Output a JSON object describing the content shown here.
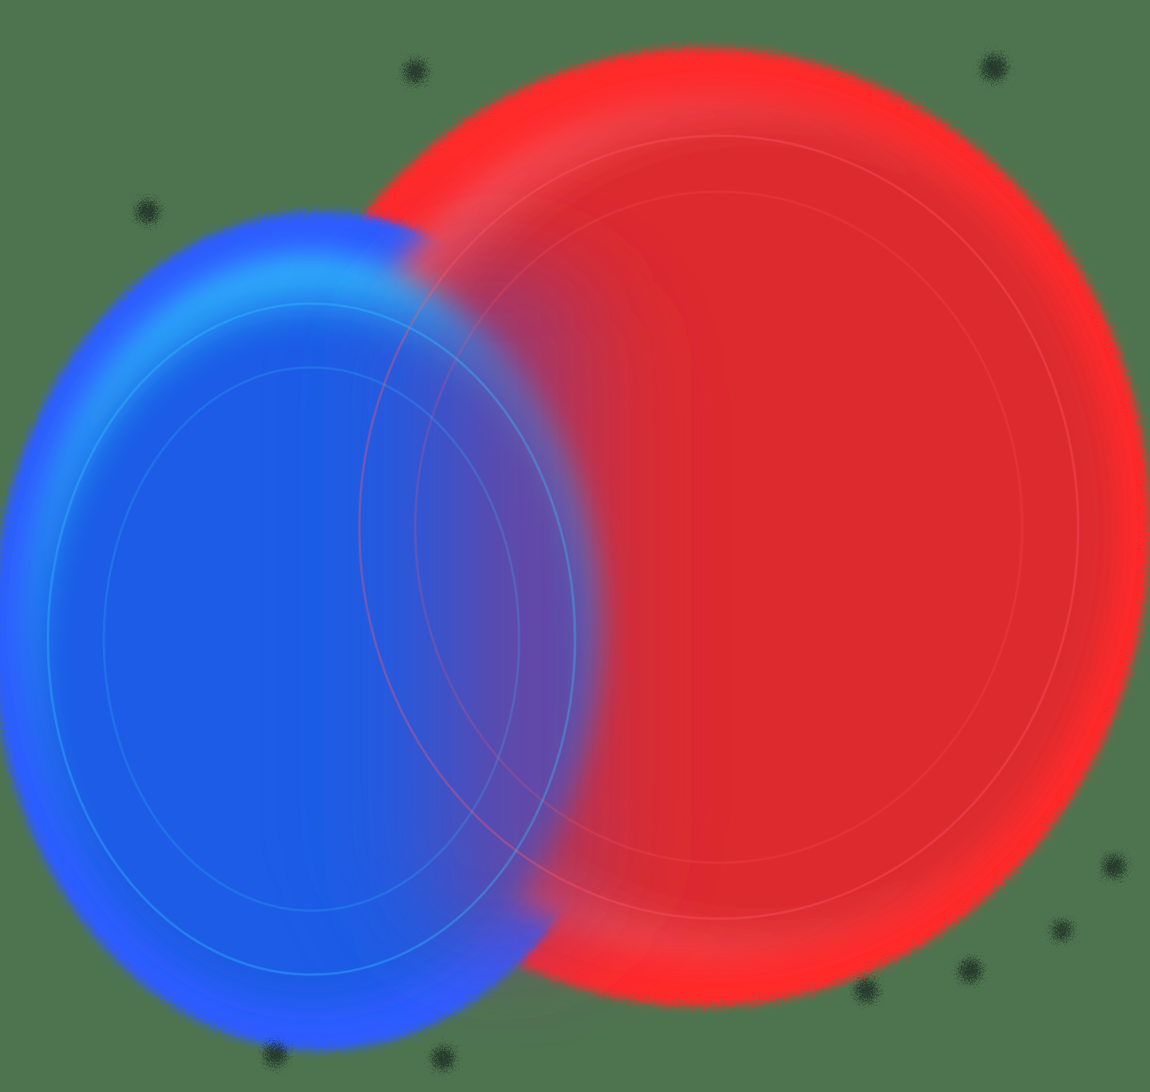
{
  "scene": {
    "background_color": "#4E744F",
    "blue_blob_color": "#1A5CE6",
    "blue_edge_color": "#2E5BFF",
    "blue_glow_color": "#33C6FF",
    "red_blob_color": "#DD2C2E",
    "red_edge_color": "#FF2A2A",
    "red_glow_color": "#FF5A66",
    "blend_color": "#7A3F8C",
    "speckle_color": "#1E2A22"
  }
}
